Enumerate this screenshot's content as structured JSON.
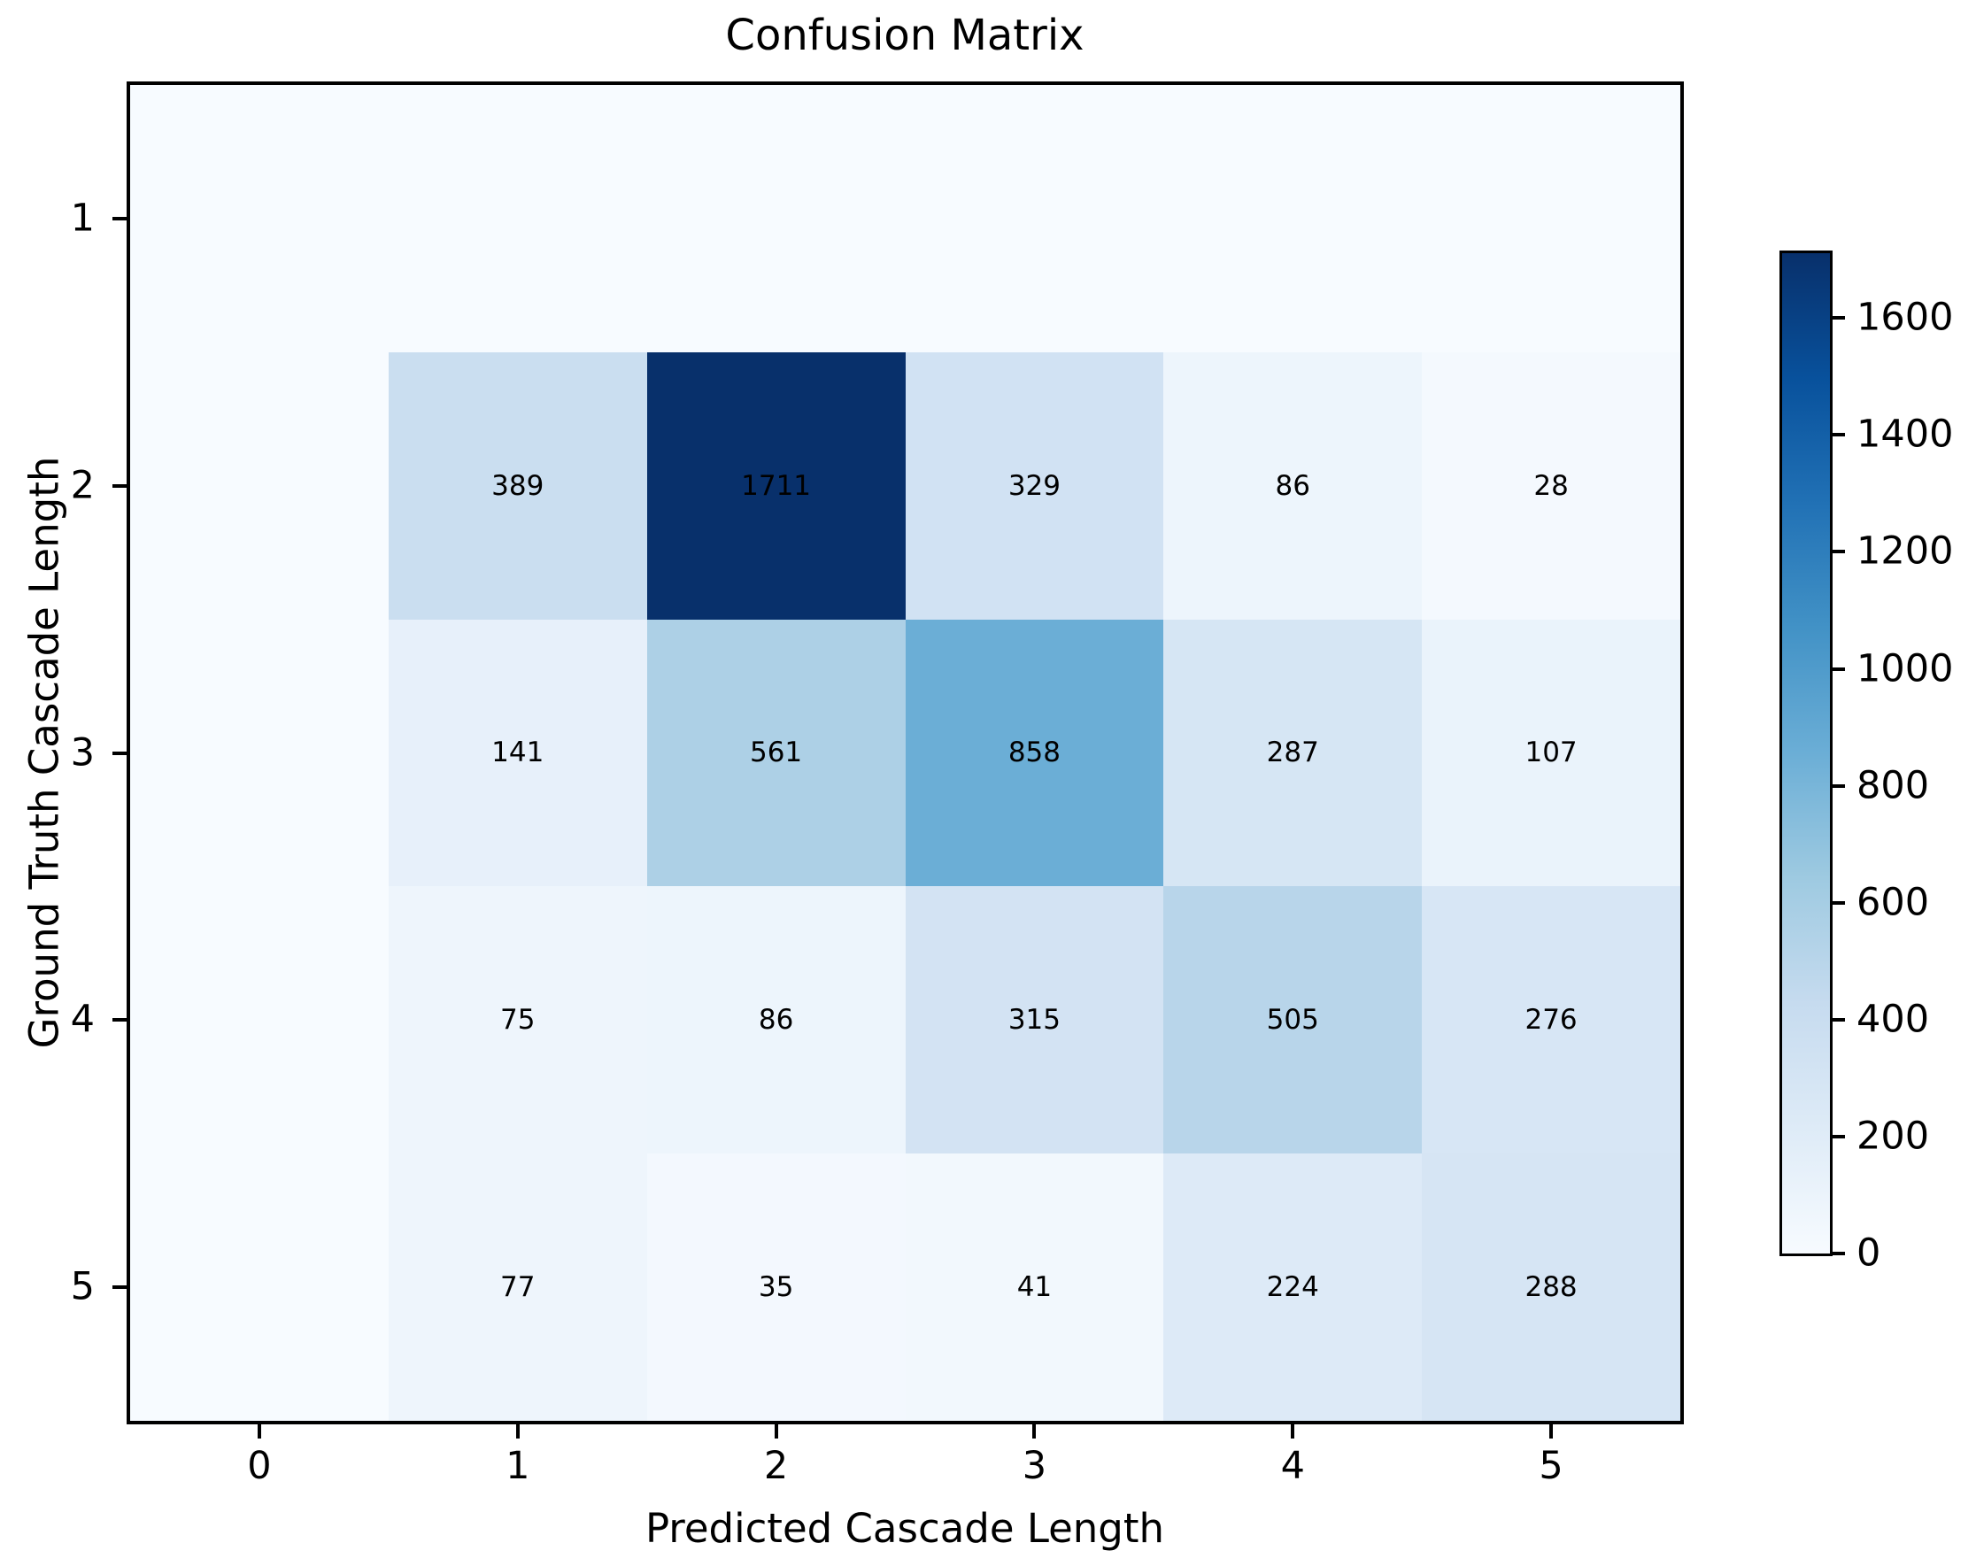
{
  "title": "Confusion Matrix",
  "chart_data": {
    "type": "heatmap",
    "title": "Confusion Matrix",
    "xlabel": "Predicted Cascade Length",
    "ylabel": "Ground Truth Cascade Length",
    "x_ticks": [
      "0",
      "1",
      "2",
      "3",
      "4",
      "5"
    ],
    "y_ticks": [
      "1",
      "2",
      "3",
      "4",
      "5"
    ],
    "matrix": [
      [
        0,
        0,
        0,
        0,
        0,
        0
      ],
      [
        0,
        389,
        1711,
        329,
        86,
        28
      ],
      [
        0,
        141,
        561,
        858,
        287,
        107
      ],
      [
        0,
        75,
        86,
        315,
        505,
        276
      ],
      [
        0,
        77,
        35,
        41,
        224,
        288
      ]
    ],
    "vmin": 0,
    "vmax": 1711,
    "colormap": "Blues",
    "colormap_anchors": [
      "#f7fbff",
      "#deebf7",
      "#c6dbef",
      "#9ecae1",
      "#6baed6",
      "#4292c6",
      "#2171b5",
      "#08519c",
      "#08306b"
    ],
    "colorbar_ticks": [
      1600,
      1400,
      1200,
      1000,
      800,
      600,
      400,
      200,
      0
    ],
    "colorbar_position": "right",
    "annotation_color": "#000000",
    "spine_color": "#000000",
    "background_color": "#ffffff",
    "grid": false,
    "annotate_zero_cells": false
  }
}
